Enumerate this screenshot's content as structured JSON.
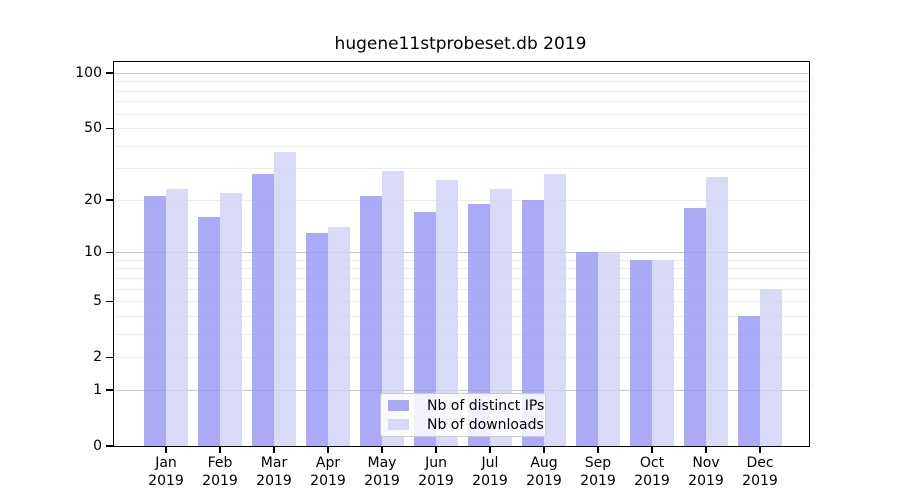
{
  "figure": {
    "title": "hugene11stprobeset.db 2019"
  },
  "colors": {
    "distinct_ips_swatch": "#a9a9f5",
    "downloads_swatch": "#d8d8f8",
    "distinct_ips_bar": "rgba(151,151,244,0.82)",
    "downloads_bar": "rgba(209,209,246,0.82)",
    "grid_major": "#c9c9c9",
    "grid_minor": "#ededed",
    "axis": "#000000"
  },
  "chart_data": {
    "type": "bar",
    "title": "hugene11stprobeset.db 2019",
    "categories": [
      "Jan",
      "Feb",
      "Mar",
      "Apr",
      "May",
      "Jun",
      "Jul",
      "Aug",
      "Sep",
      "Oct",
      "Nov",
      "Dec"
    ],
    "year": "2019",
    "series": [
      {
        "name": "Nb of distinct IPs",
        "values": [
          21,
          16,
          28,
          13,
          21,
          17,
          19,
          20,
          10,
          9,
          18,
          4
        ]
      },
      {
        "name": "Nb of downloads",
        "values": [
          23,
          22,
          37,
          14,
          29,
          26,
          23,
          28,
          10,
          9,
          27,
          6
        ]
      }
    ],
    "yscale": "log1p",
    "ylim": [
      0,
      100
    ],
    "yticks": [
      0,
      1,
      2,
      5,
      10,
      20,
      50,
      100
    ],
    "grid": "on",
    "grid_values_major": [
      1,
      10,
      100
    ],
    "grid_values_minor": [
      2,
      3,
      4,
      5,
      6,
      7,
      8,
      9,
      20,
      30,
      40,
      50,
      60,
      70,
      80,
      90
    ],
    "legend_position": "lower-center-inside",
    "xlabel": "",
    "ylabel": ""
  }
}
